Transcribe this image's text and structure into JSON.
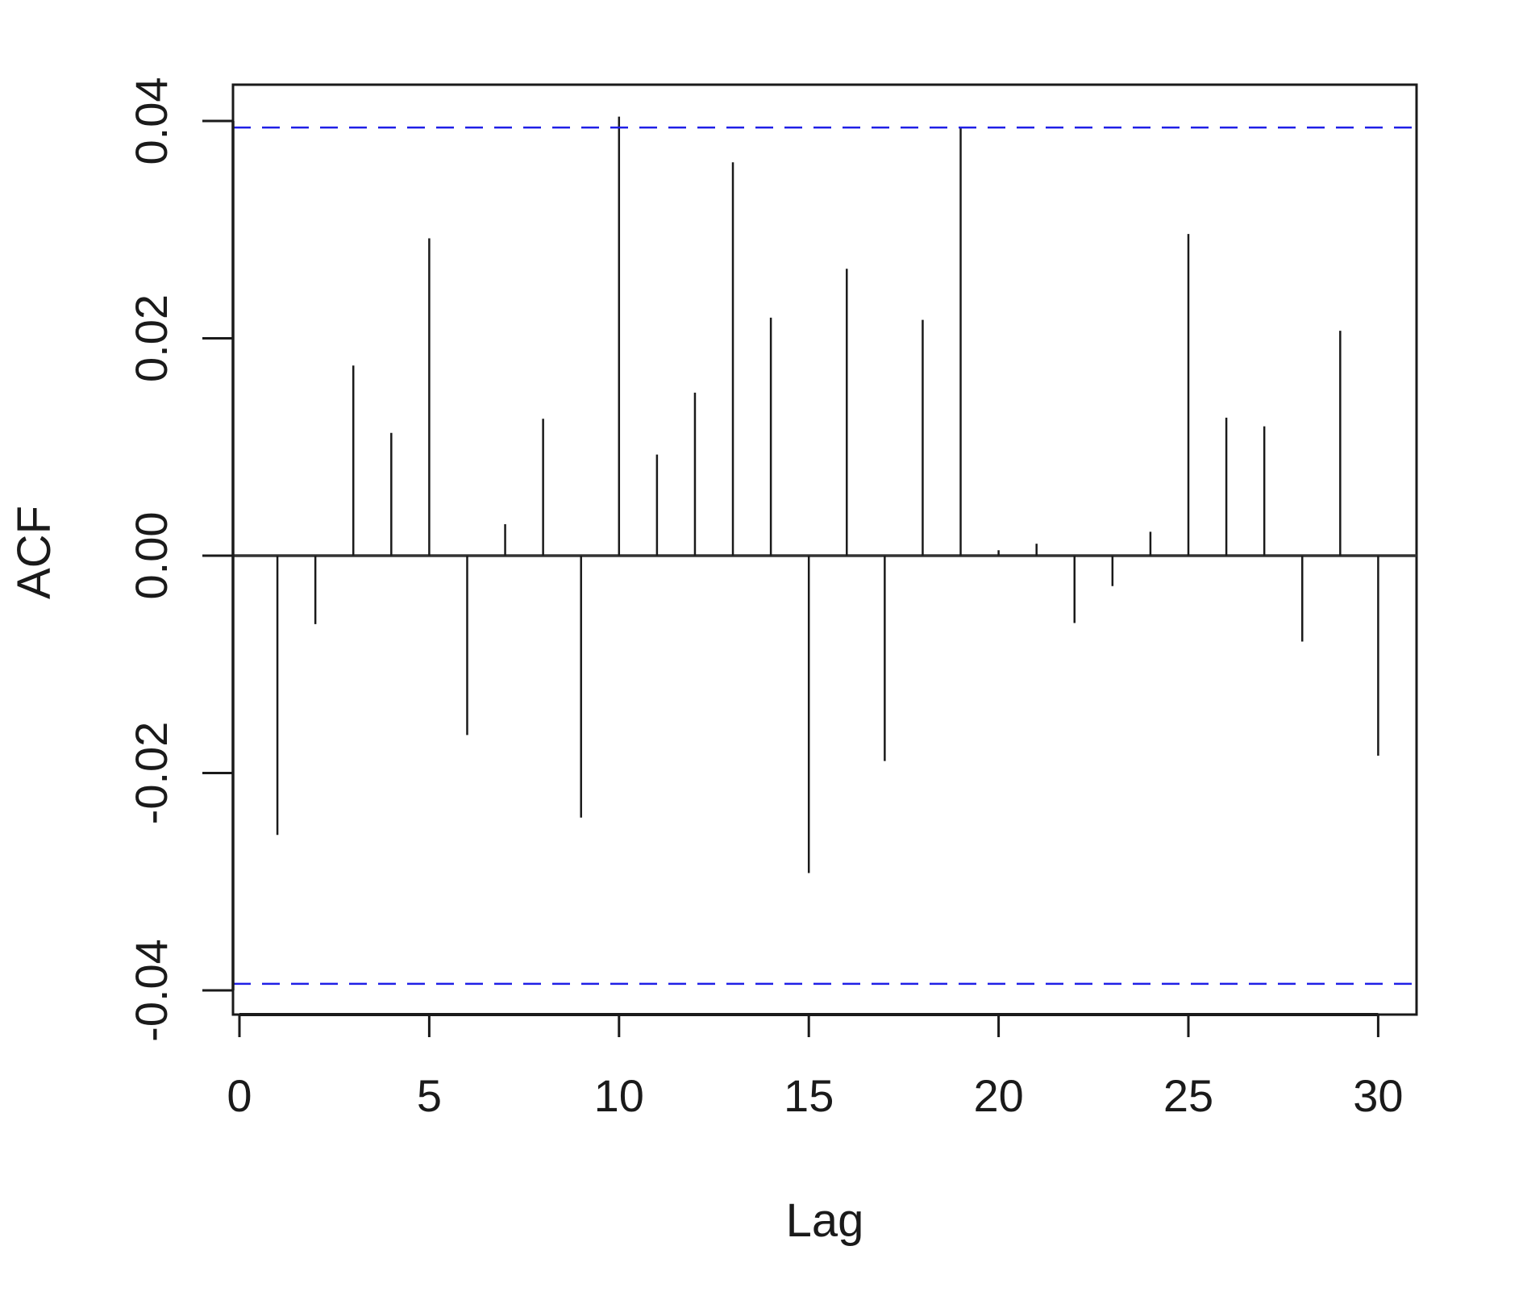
{
  "chart_data": {
    "type": "bar",
    "subtype": "acf-correlogram",
    "xlabel": "Lag",
    "ylabel": "ACF",
    "xlim": [
      0,
      30
    ],
    "ylim": [
      -0.04,
      0.04
    ],
    "x_ticks": [
      "0",
      "5",
      "10",
      "15",
      "20",
      "25",
      "30"
    ],
    "y_ticks": [
      "-0.04",
      "-0.02",
      "0.00",
      "0.02",
      "0.04"
    ],
    "grid": false,
    "legend": "none",
    "series": [
      {
        "lags": [
          1,
          2,
          3,
          4,
          5,
          6,
          7,
          8,
          9,
          10,
          11,
          12,
          13,
          14,
          15,
          16,
          17,
          18,
          19,
          20,
          21,
          22,
          23,
          24,
          25,
          26,
          27,
          28,
          29,
          30
        ],
        "values": [
          -0.0257,
          -0.0063,
          0.0175,
          0.0113,
          0.0292,
          -0.0165,
          0.0029,
          0.0126,
          -0.0241,
          0.0404,
          0.0093,
          0.015,
          0.0362,
          0.0219,
          -0.0292,
          0.0264,
          -0.0189,
          0.0217,
          0.0394,
          0.0005,
          0.0011,
          -0.0062,
          -0.0028,
          0.0022,
          0.0296,
          0.0127,
          0.0119,
          -0.0079,
          0.0207,
          -0.0184
        ]
      }
    ],
    "confidence_bounds": [
      0.0394,
      -0.0394
    ],
    "colors": {
      "bars": "#1a1a1a",
      "axes": "#1a1a1a",
      "zero_line": "#333333",
      "bounds": "#1f1fe6"
    }
  }
}
